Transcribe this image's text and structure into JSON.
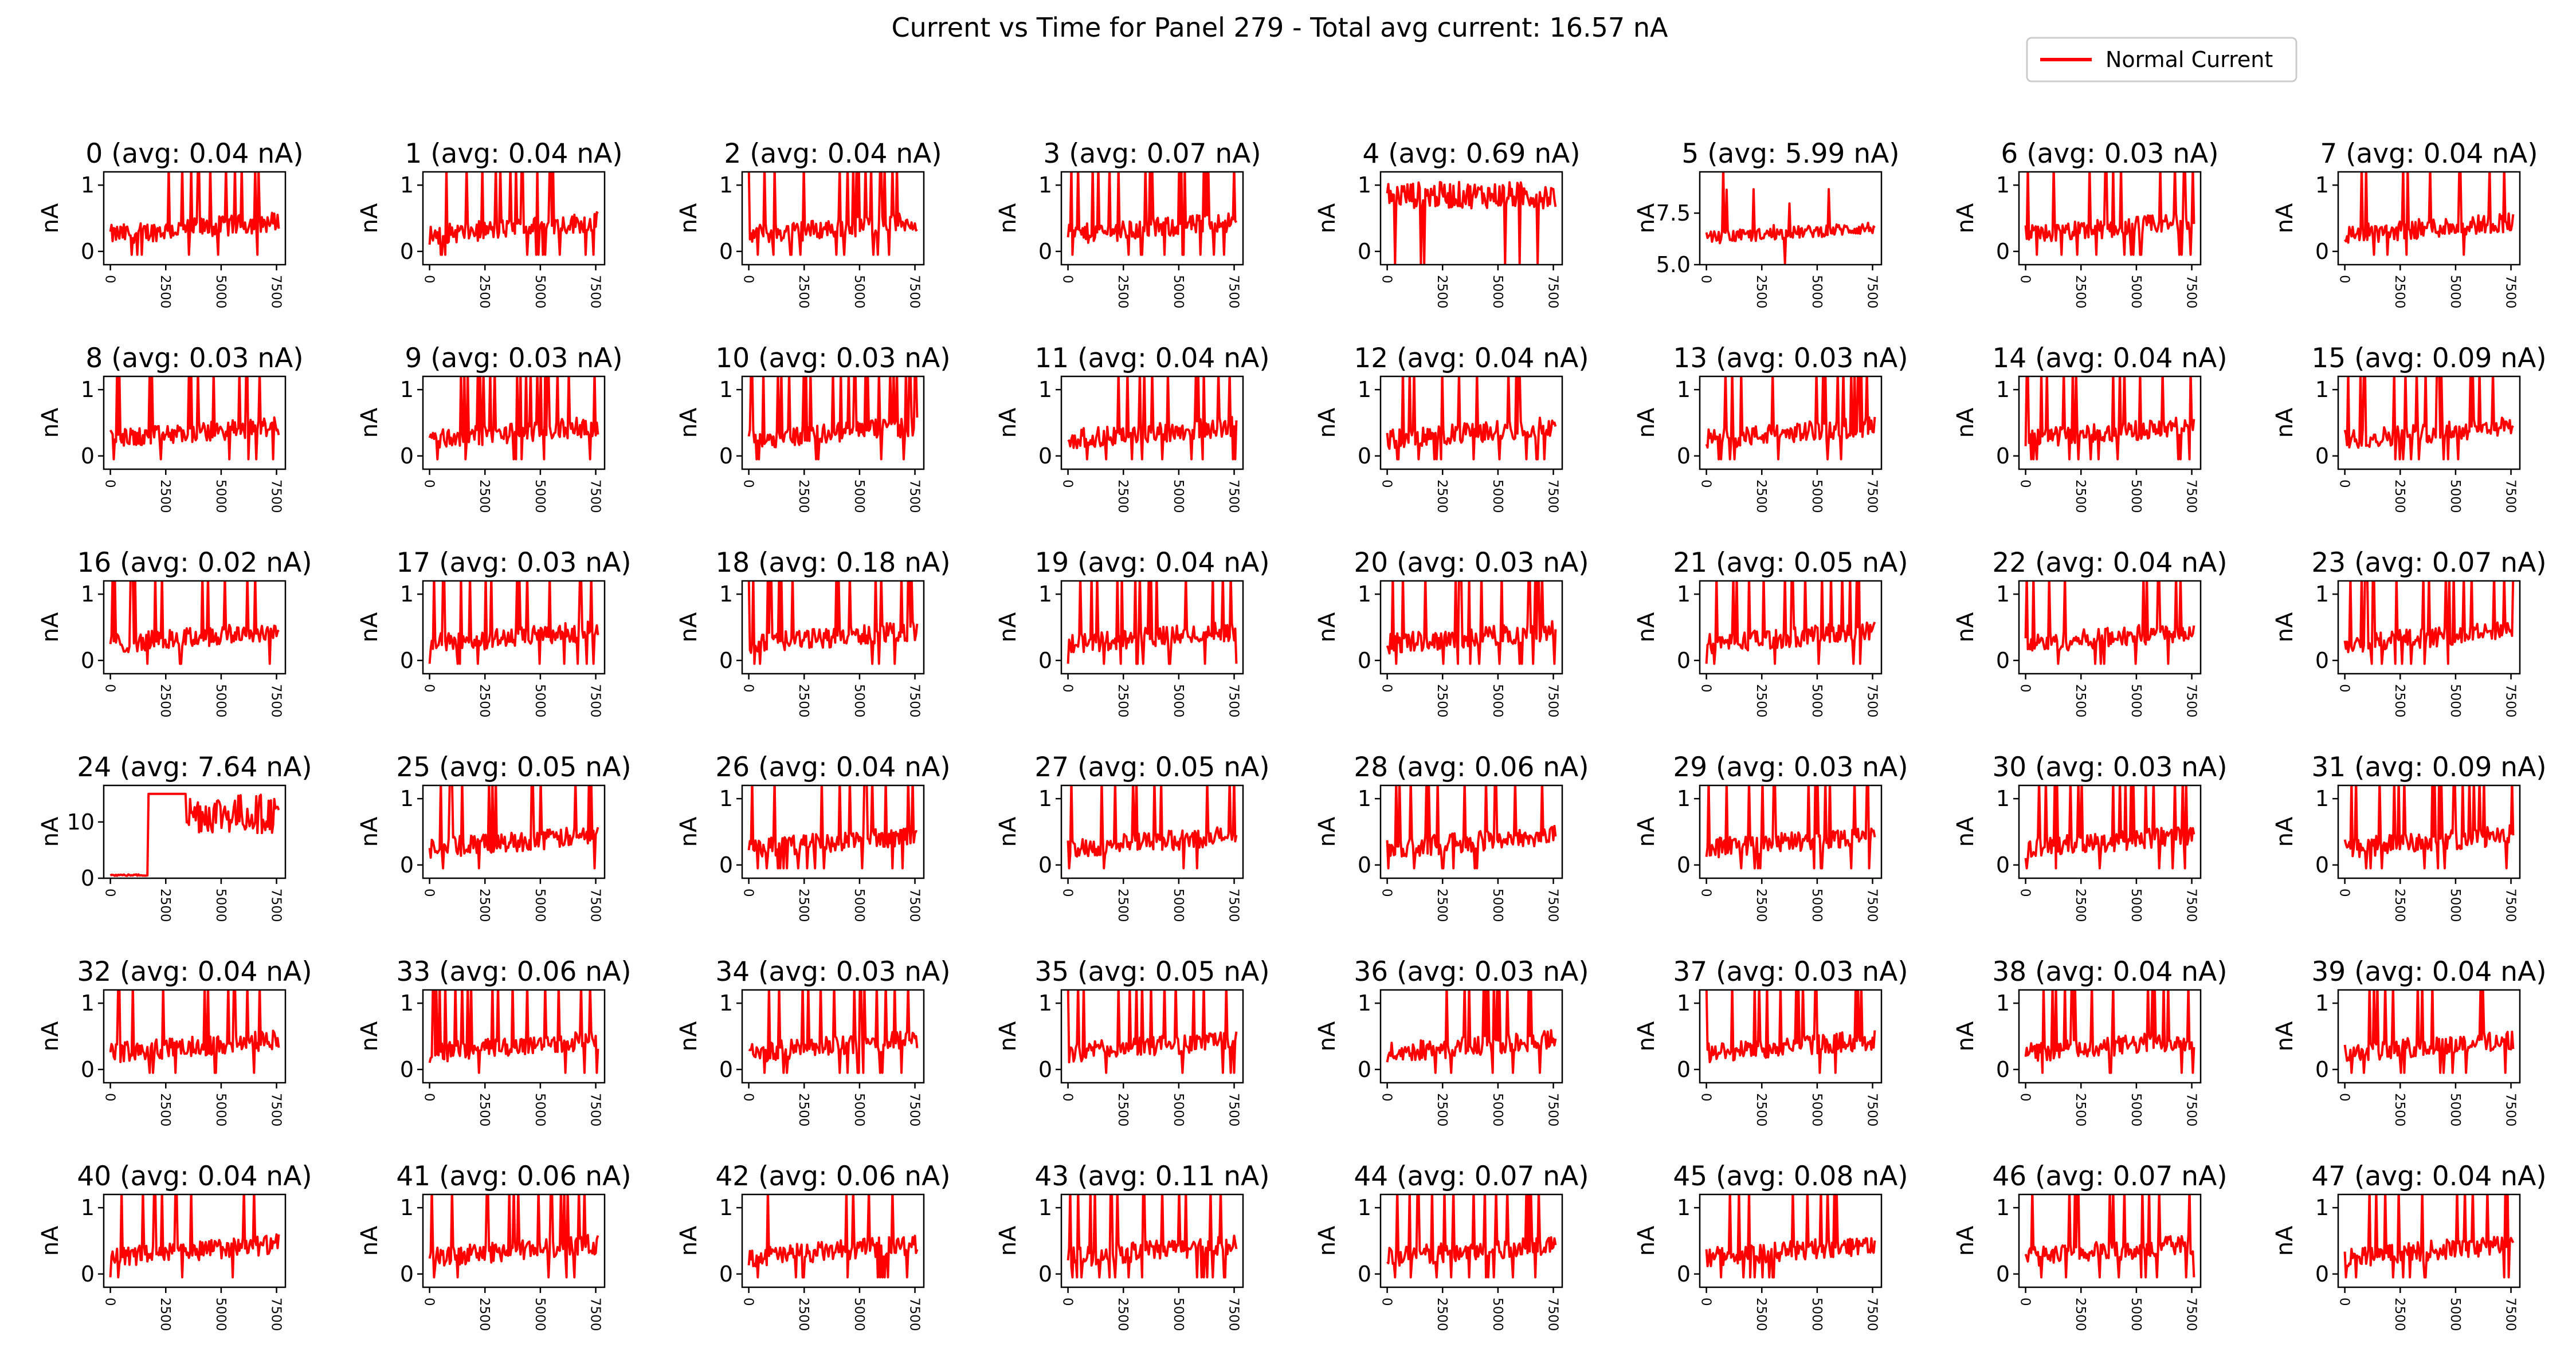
{
  "chart_data": {
    "type": "line",
    "title": "Current vs Time for Panel 279 - Total avg current: 16.57 nA",
    "legend": {
      "label": "Normal Current",
      "position": "top-right"
    },
    "series_color": "#ff0000",
    "grid": false,
    "xlim": [
      -300,
      7900
    ],
    "xticks": [
      "0",
      "2500",
      "5000",
      "7500"
    ],
    "ylabel": "nA",
    "default_yticks": [
      "0",
      "1"
    ],
    "default_ylim": [
      -0.2,
      1.2
    ],
    "panels": [
      {
        "title": "0 (avg: 0.04 nA)"
      },
      {
        "title": "1 (avg: 0.04 nA)"
      },
      {
        "title": "2 (avg: 0.04 nA)"
      },
      {
        "title": "3 (avg: 0.07 nA)"
      },
      {
        "title": "4 (avg: 0.69 nA)"
      },
      {
        "title": "5 (avg: 5.99 nA)",
        "ylim": [
          5.0,
          9.5
        ],
        "yticks": [
          "5.0",
          "7.5"
        ]
      },
      {
        "title": "6 (avg: 0.03 nA)"
      },
      {
        "title": "7 (avg: 0.04 nA)"
      },
      {
        "title": "8 (avg: 0.03 nA)"
      },
      {
        "title": "9 (avg: 0.03 nA)"
      },
      {
        "title": "10 (avg: 0.03 nA)"
      },
      {
        "title": "11 (avg: 0.04 nA)"
      },
      {
        "title": "12 (avg: 0.04 nA)"
      },
      {
        "title": "13 (avg: 0.03 nA)"
      },
      {
        "title": "14 (avg: 0.04 nA)"
      },
      {
        "title": "15 (avg: 0.09 nA)"
      },
      {
        "title": "16 (avg: 0.02 nA)"
      },
      {
        "title": "17 (avg: 0.03 nA)"
      },
      {
        "title": "18 (avg: 0.18 nA)"
      },
      {
        "title": "19 (avg: 0.04 nA)"
      },
      {
        "title": "20 (avg: 0.03 nA)"
      },
      {
        "title": "21 (avg: 0.05 nA)"
      },
      {
        "title": "22 (avg: 0.04 nA)"
      },
      {
        "title": "23 (avg: 0.07 nA)"
      },
      {
        "title": "24 (avg: 7.64 nA)",
        "ylim": [
          0,
          16.5
        ],
        "yticks": [
          "0",
          "10"
        ]
      },
      {
        "title": "25 (avg: 0.05 nA)"
      },
      {
        "title": "26 (avg: 0.04 nA)"
      },
      {
        "title": "27 (avg: 0.05 nA)"
      },
      {
        "title": "28 (avg: 0.06 nA)"
      },
      {
        "title": "29 (avg: 0.03 nA)"
      },
      {
        "title": "30 (avg: 0.03 nA)"
      },
      {
        "title": "31 (avg: 0.09 nA)"
      },
      {
        "title": "32 (avg: 0.04 nA)"
      },
      {
        "title": "33 (avg: 0.06 nA)"
      },
      {
        "title": "34 (avg: 0.03 nA)"
      },
      {
        "title": "35 (avg: 0.05 nA)"
      },
      {
        "title": "36 (avg: 0.03 nA)"
      },
      {
        "title": "37 (avg: 0.03 nA)"
      },
      {
        "title": "38 (avg: 0.04 nA)"
      },
      {
        "title": "39 (avg: 0.04 nA)"
      },
      {
        "title": "40 (avg: 0.04 nA)"
      },
      {
        "title": "41 (avg: 0.06 nA)"
      },
      {
        "title": "42 (avg: 0.06 nA)"
      },
      {
        "title": "43 (avg: 0.11 nA)"
      },
      {
        "title": "44 (avg: 0.07 nA)"
      },
      {
        "title": "45 (avg: 0.08 nA)"
      },
      {
        "title": "46 (avg: 0.07 nA)"
      },
      {
        "title": "47 (avg: 0.04 nA)"
      }
    ]
  }
}
